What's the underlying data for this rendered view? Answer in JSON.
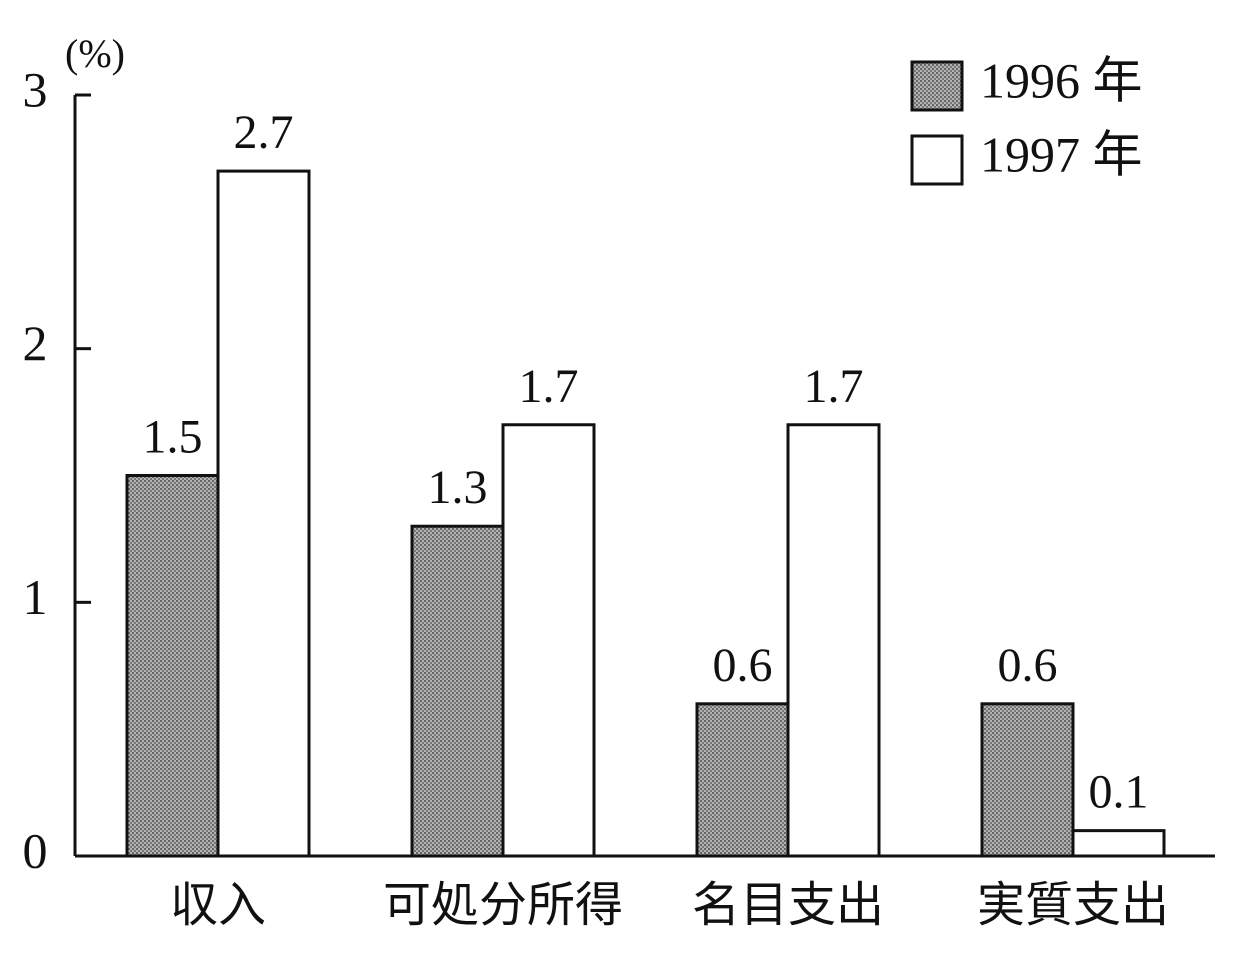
{
  "chart_data": {
    "type": "bar",
    "unit_label": "(%)",
    "categories": [
      "収入",
      "可処分所得",
      "名目支出",
      "実質支出"
    ],
    "series": [
      {
        "name": "1996 年",
        "color": "#b3b3b3",
        "values": [
          1.5,
          1.3,
          0.6,
          0.6
        ]
      },
      {
        "name": "1997 年",
        "color": "#ffffff",
        "values": [
          2.7,
          1.7,
          1.7,
          0.1
        ]
      }
    ],
    "ylim": [
      0,
      3
    ],
    "yticks": [
      0,
      1,
      2,
      3
    ],
    "legend": "top-right"
  }
}
